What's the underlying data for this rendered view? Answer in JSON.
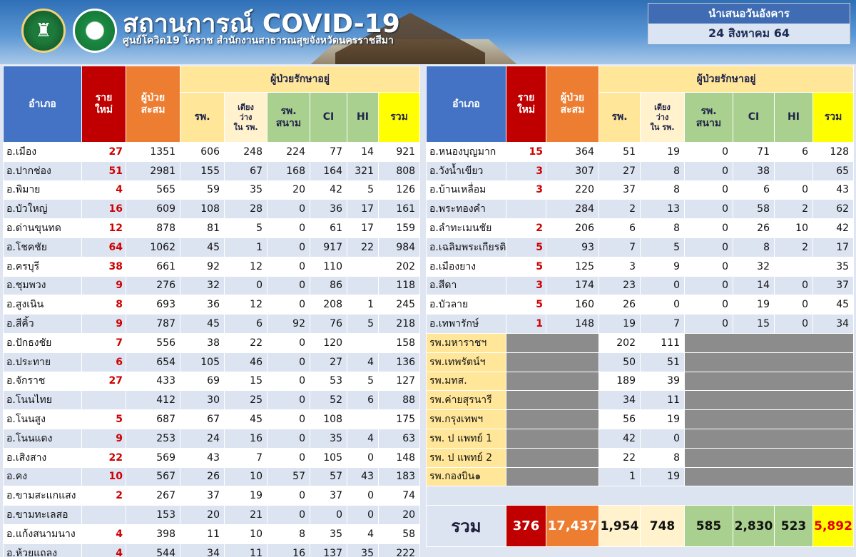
{
  "header": {
    "title": "สถานการณ์ COVID-19",
    "subtitle": "ศูนย์โควิด19 โคราช สำนักงานสาธารณสุขจังหวัดนครราชสีมา",
    "day_label": "นำเสนอวันอังคาร",
    "date": "24 สิงหาคม 64"
  },
  "columns": {
    "district": "อำเภอ",
    "new_line1": "ราย",
    "new_line2": "ใหม่",
    "cum_line1": "ผู้ป่วย",
    "cum_line2": "สะสม",
    "treat_group": "ผู้ป่วยรักษาอยู่",
    "hosp": "รพ.",
    "bed_line1": "เตียง",
    "bed_line2": "ว่าง",
    "bed_line3": "ใน รพ.",
    "field_line1": "รพ.",
    "field_line2": "สนาม",
    "ci": "CI",
    "hi": "HI",
    "total": "รวม"
  },
  "left_rows": [
    {
      "d": "อ.เมือง",
      "n": "27",
      "c": "1351",
      "h": "606",
      "b": "248",
      "f": "224",
      "ci": "77",
      "hi": "14",
      "t": "921"
    },
    {
      "d": "อ.ปากช่อง",
      "n": "51",
      "c": "2981",
      "h": "155",
      "b": "67",
      "f": "168",
      "ci": "164",
      "hi": "321",
      "t": "808"
    },
    {
      "d": "อ.พิมาย",
      "n": "4",
      "c": "565",
      "h": "59",
      "b": "35",
      "f": "20",
      "ci": "42",
      "hi": "5",
      "t": "126"
    },
    {
      "d": "อ.บัวใหญ่",
      "n": "16",
      "c": "609",
      "h": "108",
      "b": "28",
      "f": "0",
      "ci": "36",
      "hi": "17",
      "t": "161"
    },
    {
      "d": "อ.ด่านขุนทด",
      "n": "12",
      "c": "878",
      "h": "81",
      "b": "5",
      "f": "0",
      "ci": "61",
      "hi": "17",
      "t": "159"
    },
    {
      "d": "อ.โชคชัย",
      "n": "64",
      "c": "1062",
      "h": "45",
      "b": "1",
      "f": "0",
      "ci": "917",
      "hi": "22",
      "t": "984"
    },
    {
      "d": "อ.ครบุรี",
      "n": "38",
      "c": "661",
      "h": "92",
      "b": "12",
      "f": "0",
      "ci": "110",
      "hi": "",
      "t": "202"
    },
    {
      "d": "อ.ชุมพวง",
      "n": "9",
      "c": "276",
      "h": "32",
      "b": "0",
      "f": "0",
      "ci": "86",
      "hi": "",
      "t": "118"
    },
    {
      "d": "อ.สูงเนิน",
      "n": "8",
      "c": "693",
      "h": "36",
      "b": "12",
      "f": "0",
      "ci": "208",
      "hi": "1",
      "t": "245"
    },
    {
      "d": "อ.สีคิ้ว",
      "n": "9",
      "c": "787",
      "h": "45",
      "b": "6",
      "f": "92",
      "ci": "76",
      "hi": "5",
      "t": "218"
    },
    {
      "d": "อ.ปักธงชัย",
      "n": "7",
      "c": "556",
      "h": "38",
      "b": "22",
      "f": "0",
      "ci": "120",
      "hi": "",
      "t": "158"
    },
    {
      "d": "อ.ประทาย",
      "n": "6",
      "c": "654",
      "h": "105",
      "b": "46",
      "f": "0",
      "ci": "27",
      "hi": "4",
      "t": "136"
    },
    {
      "d": "อ.จักราช",
      "n": "27",
      "c": "433",
      "h": "69",
      "b": "15",
      "f": "0",
      "ci": "53",
      "hi": "5",
      "t": "127"
    },
    {
      "d": "อ.โนนไทย",
      "n": "",
      "c": "412",
      "h": "30",
      "b": "25",
      "f": "0",
      "ci": "52",
      "hi": "6",
      "t": "88"
    },
    {
      "d": "อ.โนนสูง",
      "n": "5",
      "c": "687",
      "h": "67",
      "b": "45",
      "f": "0",
      "ci": "108",
      "hi": "",
      "t": "175"
    },
    {
      "d": "อ.โนนแดง",
      "n": "9",
      "c": "253",
      "h": "24",
      "b": "16",
      "f": "0",
      "ci": "35",
      "hi": "4",
      "t": "63"
    },
    {
      "d": "อ.เสิงสาง",
      "n": "22",
      "c": "569",
      "h": "43",
      "b": "7",
      "f": "0",
      "ci": "105",
      "hi": "0",
      "t": "148"
    },
    {
      "d": "อ.คง",
      "n": "10",
      "c": "567",
      "h": "26",
      "b": "10",
      "f": "57",
      "ci": "57",
      "hi": "43",
      "t": "183"
    },
    {
      "d": "อ.ขามสะแกแสง",
      "n": "2",
      "c": "267",
      "h": "37",
      "b": "19",
      "f": "0",
      "ci": "37",
      "hi": "0",
      "t": "74"
    },
    {
      "d": "อ.ขามทะเลสอ",
      "n": "",
      "c": "153",
      "h": "20",
      "b": "21",
      "f": "0",
      "ci": "0",
      "hi": "0",
      "t": "20"
    },
    {
      "d": "อ.แก้งสนามนาง",
      "n": "4",
      "c": "398",
      "h": "11",
      "b": "10",
      "f": "8",
      "ci": "35",
      "hi": "4",
      "t": "58"
    },
    {
      "d": "อ.ห้วยแถลง",
      "n": "4",
      "c": "544",
      "h": "34",
      "b": "11",
      "f": "16",
      "ci": "137",
      "hi": "35",
      "t": "222"
    }
  ],
  "right_rows": [
    {
      "d": "อ.หนองบุญมาก",
      "n": "15",
      "c": "364",
      "h": "51",
      "b": "19",
      "f": "0",
      "ci": "71",
      "hi": "6",
      "t": "128"
    },
    {
      "d": "อ.วังน้ำเขียว",
      "n": "3",
      "c": "307",
      "h": "27",
      "b": "8",
      "f": "0",
      "ci": "38",
      "hi": "",
      "t": "65"
    },
    {
      "d": "อ.บ้านเหลื่อม",
      "n": "3",
      "c": "220",
      "h": "37",
      "b": "8",
      "f": "0",
      "ci": "6",
      "hi": "0",
      "t": "43"
    },
    {
      "d": "อ.พระทองคำ",
      "n": "",
      "c": "284",
      "h": "2",
      "b": "13",
      "f": "0",
      "ci": "58",
      "hi": "2",
      "t": "62"
    },
    {
      "d": "อ.ลำทะเมนชัย",
      "n": "2",
      "c": "206",
      "h": "6",
      "b": "8",
      "f": "0",
      "ci": "26",
      "hi": "10",
      "t": "42"
    },
    {
      "d": "อ.เฉลิมพระเกียรติ",
      "n": "5",
      "c": "93",
      "h": "7",
      "b": "5",
      "f": "0",
      "ci": "8",
      "hi": "2",
      "t": "17"
    },
    {
      "d": "อ.เมืองยาง",
      "n": "5",
      "c": "125",
      "h": "3",
      "b": "9",
      "f": "0",
      "ci": "32",
      "hi": "",
      "t": "35"
    },
    {
      "d": "อ.สีดา",
      "n": "3",
      "c": "174",
      "h": "23",
      "b": "0",
      "f": "0",
      "ci": "14",
      "hi": "0",
      "t": "37"
    },
    {
      "d": "อ.บัวลาย",
      "n": "5",
      "c": "160",
      "h": "26",
      "b": "0",
      "f": "0",
      "ci": "19",
      "hi": "0",
      "t": "45"
    },
    {
      "d": "อ.เทพารักษ์",
      "n": "1",
      "c": "148",
      "h": "19",
      "b": "7",
      "f": "0",
      "ci": "15",
      "hi": "0",
      "t": "34"
    }
  ],
  "hospital_rows": [
    {
      "d": "รพ.มหาราชฯ",
      "h": "202",
      "b": "111"
    },
    {
      "d": "รพ.เทพรัตน์ฯ",
      "h": "50",
      "b": "51"
    },
    {
      "d": "รพ.มทส.",
      "h": "189",
      "b": "39"
    },
    {
      "d": "รพ.ค่ายสุรนารี",
      "h": "34",
      "b": "11"
    },
    {
      "d": "รพ.กรุงเทพฯ",
      "h": "56",
      "b": "19"
    },
    {
      "d": "รพ. ป แพทย์ 1",
      "h": "42",
      "b": "0"
    },
    {
      "d": "รพ. ป แพทย์ 2",
      "h": "22",
      "b": "8"
    },
    {
      "d": "รพ.กองบิน๑",
      "h": "1",
      "b": "19"
    }
  ],
  "totals": {
    "label": "รวม",
    "new": "376",
    "cum": "17,437",
    "hosp": "1,954",
    "bed": "748",
    "field": "585",
    "ci": "2,830",
    "hi": "523",
    "total": "5,892"
  },
  "colors": {
    "header_blue": "#4472c4",
    "new_red": "#c00000",
    "cumulative_orange": "#ed7d31",
    "treat_yellow": "#ffe699",
    "field_green": "#a9d08e",
    "total_yellow": "#ffff00"
  }
}
